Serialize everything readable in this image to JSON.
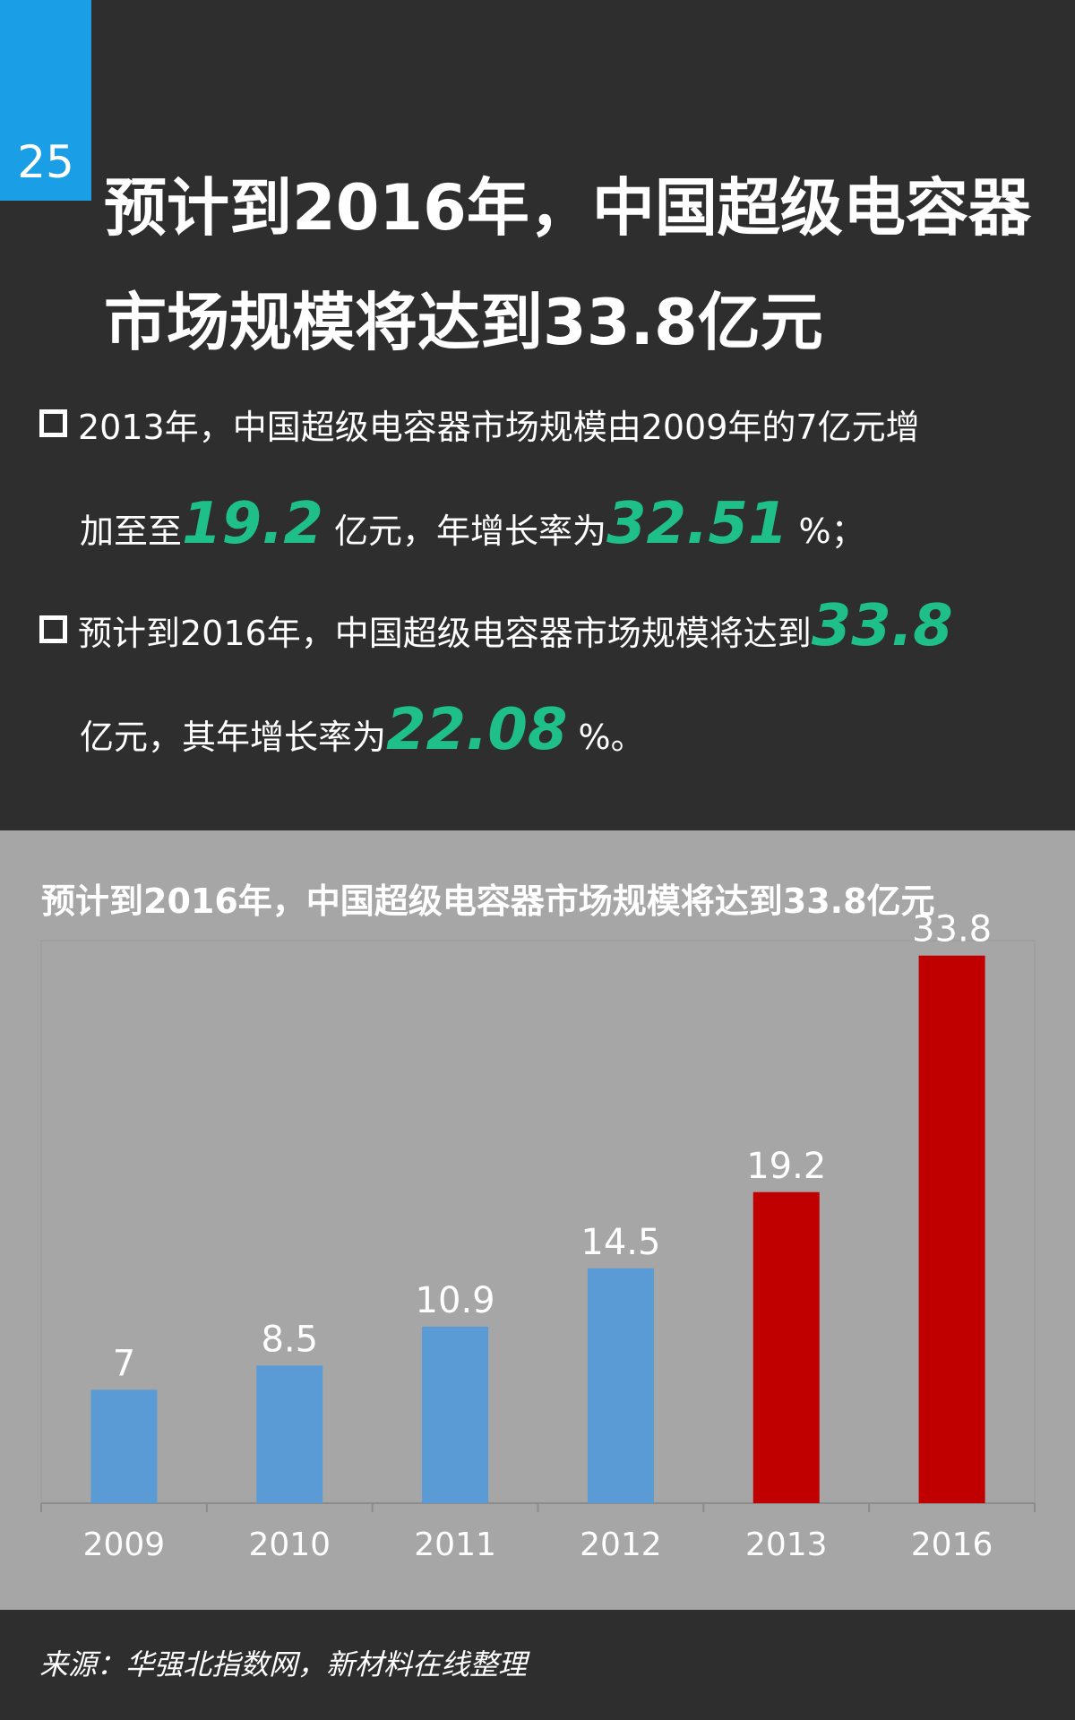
{
  "badge": "25",
  "title_line1": "预计到2016年，中国超级电容器",
  "title_line2": "市场规模将达到33.8亿元",
  "bullet1": {
    "line1": "2013年，中国超级电容器市场规模由2009年的7亿元增",
    "pre": "加至至",
    "value1": "19.2",
    "mid": " 亿元，年增长率为",
    "value2": "32.51",
    "post": " %；"
  },
  "bullet2": {
    "pre": "预计到2016年，中国超级电容器市场规模将达到",
    "value1": "33.8",
    "line2_pre": "亿元，其年增长率为",
    "value2": "22.08",
    "post": " %。"
  },
  "colors": {
    "background": "#2e2e2e",
    "badge": "#1a9ee6",
    "highlight": "#1fbf8a",
    "chart_bg": "#a6a6a6",
    "bar_actual": "#5b9bd5",
    "bar_highlight": "#c00000"
  },
  "chart_data": {
    "type": "bar",
    "title": "预计到2016年，中国超级电容器市场规模将达到33.8亿元",
    "categories": [
      "2009",
      "2010",
      "2011",
      "2012",
      "2013",
      "2016"
    ],
    "values": [
      7,
      8.5,
      10.9,
      14.5,
      19.2,
      33.8
    ],
    "value_labels": [
      "7",
      "8.5",
      "10.9",
      "14.5",
      "19.2",
      "33.8"
    ],
    "bar_colors": [
      "#5b9bd5",
      "#5b9bd5",
      "#5b9bd5",
      "#5b9bd5",
      "#c00000",
      "#c00000"
    ],
    "ylim": [
      0,
      35
    ],
    "grid": false,
    "legend": "none"
  },
  "footer": "来源：华强北指数网，新材料在线整理"
}
